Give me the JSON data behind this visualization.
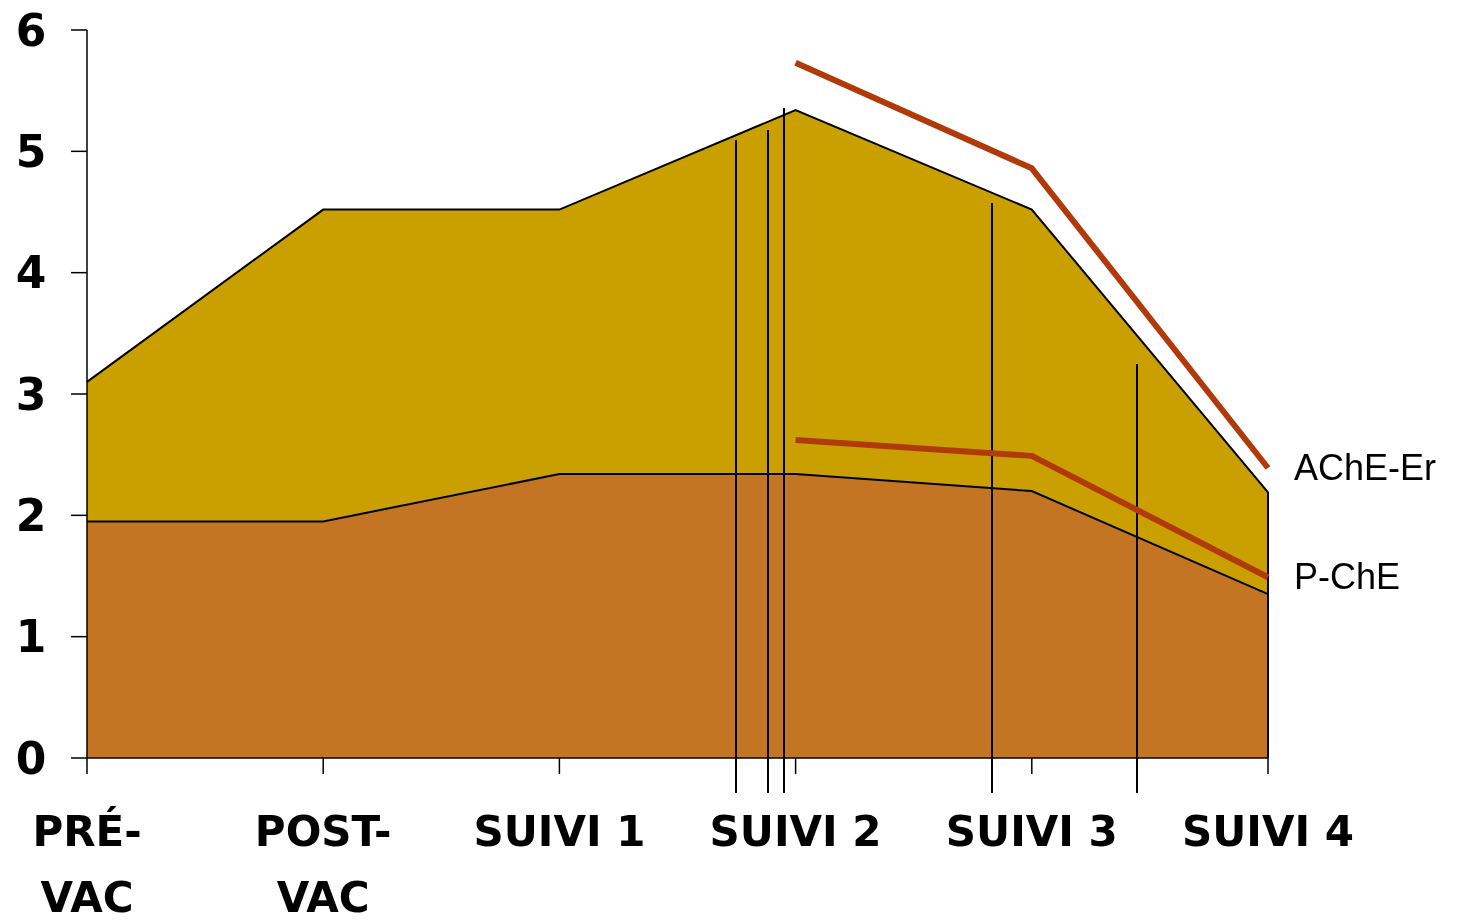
{
  "chart_data": {
    "type": "area",
    "categories": [
      "PRÉ-VAC",
      "POST-VAC",
      "SUIVI 1",
      "SUIVI 2",
      "SUIVI 3",
      "SUIVI 4"
    ],
    "ylim": [
      0,
      6
    ],
    "yticks": [
      0,
      1,
      2,
      3,
      4,
      5,
      6
    ],
    "grid": false,
    "series": [
      {
        "color": "#c9a000",
        "values": [
          3.1,
          4.52,
          4.52,
          5.34,
          4.52,
          2.19
        ]
      },
      {
        "color": "#c47524",
        "values": [
          1.95,
          1.95,
          2.34,
          2.34,
          2.2,
          1.35
        ]
      },
      {
        "type": "line",
        "name": "AChE-Er",
        "color": "#b03a0a",
        "values": [
          null,
          null,
          null,
          5.73,
          4.86,
          2.39
        ]
      },
      {
        "type": "line",
        "name": "P-ChE",
        "color": "#b03a0a",
        "values": [
          null,
          null,
          null,
          2.62,
          2.49,
          1.49
        ]
      }
    ]
  }
}
